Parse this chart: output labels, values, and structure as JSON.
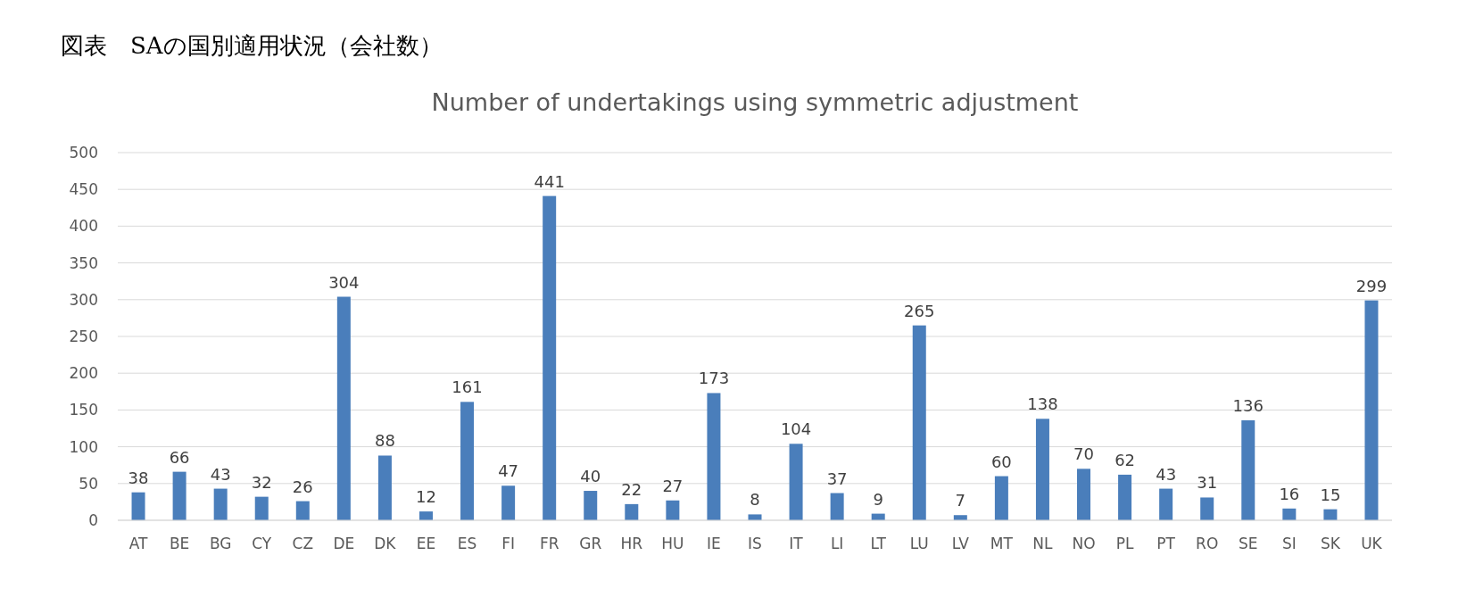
{
  "chart_data": {
    "type": "bar",
    "title": "図表　SAの国別適用状況（会社数）",
    "subtitle": "Number of undertakings using symmetric adjustment",
    "categories": [
      "AT",
      "BE",
      "BG",
      "CY",
      "CZ",
      "DE",
      "DK",
      "EE",
      "ES",
      "FI",
      "FR",
      "GR",
      "HR",
      "HU",
      "IE",
      "IS",
      "IT",
      "LI",
      "LT",
      "LU",
      "LV",
      "MT",
      "NL",
      "NO",
      "PL",
      "PT",
      "RO",
      "SE",
      "SI",
      "SK",
      "UK"
    ],
    "values": [
      38,
      66,
      43,
      32,
      26,
      304,
      88,
      12,
      161,
      47,
      441,
      40,
      22,
      27,
      173,
      8,
      104,
      37,
      9,
      265,
      7,
      60,
      138,
      70,
      62,
      43,
      31,
      136,
      16,
      15,
      299
    ],
    "color": "#4a7ebb",
    "ylim": [
      0,
      500
    ],
    "yticks": [
      0,
      50,
      100,
      150,
      200,
      250,
      300,
      350,
      400,
      450,
      500
    ],
    "grid": "y",
    "data_labels": true
  }
}
